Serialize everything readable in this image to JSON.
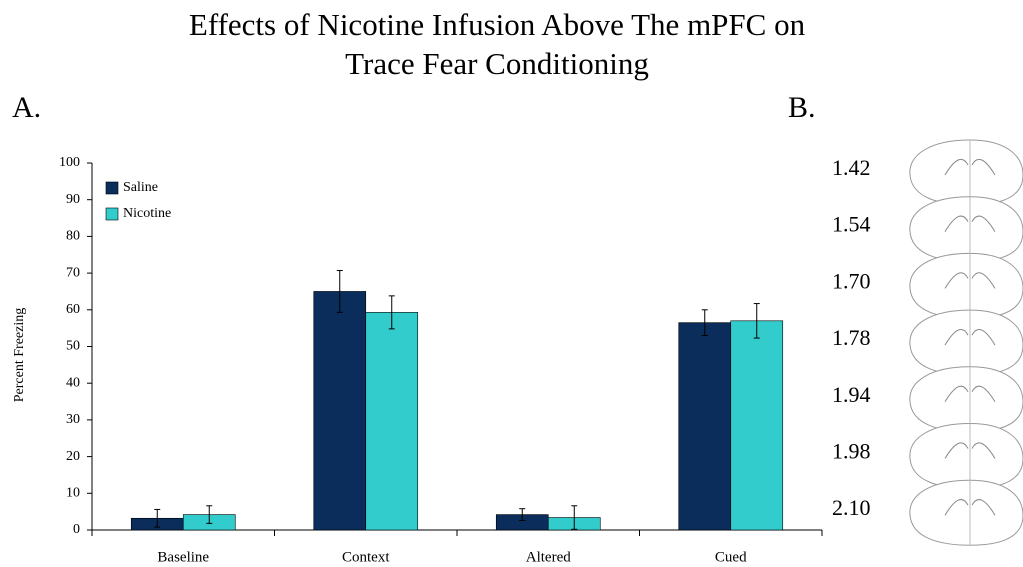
{
  "title_lines": [
    "Effects of Nicotine Infusion Above The mPFC  on",
    "Trace Fear Conditioning"
  ],
  "panel_labels": [
    "A.",
    "B."
  ],
  "chart_data": {
    "type": "bar",
    "y_label": "Percent Freezing",
    "categories": [
      "Baseline",
      "Context",
      "Altered",
      "Cued"
    ],
    "series": [
      {
        "name": "Saline",
        "color": "#0b2d5b",
        "values": [
          3.2,
          65,
          4.2,
          56.5
        ],
        "errors": [
          2.4,
          5.7,
          1.6,
          3.5
        ]
      },
      {
        "name": "Nicotine",
        "color": "#33cccc",
        "values": [
          4.2,
          59.3,
          3.4,
          57
        ],
        "errors": [
          2.4,
          4.5,
          3.2,
          4.7
        ]
      }
    ],
    "ylim": [
      0,
      100
    ],
    "yticks": [
      0,
      10,
      20,
      30,
      40,
      50,
      60,
      70,
      80,
      90,
      100
    ],
    "legend": "upper left"
  },
  "panel_b": {
    "levels": [
      "1.42",
      "1.54",
      "1.70",
      "1.78",
      "1.94",
      "1.98",
      "2.10"
    ]
  }
}
